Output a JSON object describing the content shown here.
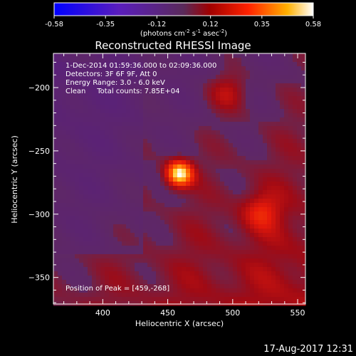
{
  "chart_data": {
    "type": "heatmap",
    "title": "Reconstructed RHESSI Image",
    "colorbar": {
      "ticks": [
        "-0.58",
        "-0.35",
        "-0.12",
        "0.12",
        "0.35",
        "0.58"
      ],
      "range": [
        -0.58,
        0.58
      ],
      "unit_text": "(photons cm",
      "unit_sup1": "-2",
      "unit_mid1": " s",
      "unit_sup2": "-1",
      "unit_mid2": " asec",
      "unit_sup3": "-2",
      "unit_end": ")"
    },
    "annotations": {
      "time": "1-Dec-2014 01:59:36.000 to 02:09:36.000",
      "detectors": "Detectors: 3F 6F 9F, Att 0",
      "energy": "Energy Range: 3.0 - 6.0 keV",
      "clean": "Clean     Total counts: 7.85E+04",
      "peak": "Position of Peak = [459,-268]"
    },
    "xlabel": "Heliocentric X (arcsec)",
    "ylabel": "Heliocentric Y (arcsec)",
    "xlim": [
      362,
      556
    ],
    "ylim": [
      -371,
      -173
    ],
    "xticks": [
      {
        "value": 400,
        "label": "400"
      },
      {
        "value": 450,
        "label": "450"
      },
      {
        "value": 500,
        "label": "500"
      },
      {
        "value": 550,
        "label": "550"
      }
    ],
    "yticks": [
      {
        "value": -200,
        "label": "−200"
      },
      {
        "value": -250,
        "label": "−250"
      },
      {
        "value": -300,
        "label": "−300"
      },
      {
        "value": -350,
        "label": "−350"
      }
    ],
    "sources": [
      {
        "x": 459,
        "y": -268,
        "peak": 0.58
      },
      {
        "x": 522,
        "y": -298,
        "peak": 0.2
      },
      {
        "x": 497,
        "y": -203,
        "peak": 0.17
      }
    ]
  },
  "footer": {
    "timestamp": "17-Aug-2017 12:31"
  },
  "colors": {
    "background": "#000000",
    "colormap": "red-temperature"
  }
}
